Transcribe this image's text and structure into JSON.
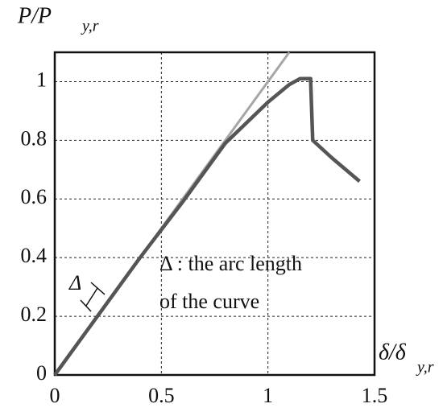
{
  "chart_data": {
    "type": "line",
    "ylabel": {
      "main": "P/P",
      "sub": "y,r"
    },
    "xlabel": {
      "main": "δ/δ",
      "sub": "y,r"
    },
    "annotations": [
      "Δ",
      "Δ : the arc length",
      "of the curve"
    ],
    "xlim": [
      0,
      1.5
    ],
    "xticks": [
      0,
      0.5,
      1,
      1.5
    ],
    "ylim": [
      0,
      1.1
    ],
    "yticks": [
      0,
      0.2,
      0.4,
      0.6,
      0.8,
      1
    ],
    "grid": true,
    "series": [
      {
        "color": "#a6a6a6",
        "x": [
          0,
          1.1
        ],
        "values": [
          0,
          1.1
        ]
      },
      {
        "color": "#555555",
        "x": [
          0,
          0.2,
          0.4,
          0.6,
          0.8,
          0.9,
          1.0,
          1.1,
          1.15,
          1.2,
          1.21,
          1.3,
          1.43
        ],
        "values": [
          0,
          0.2,
          0.4,
          0.59,
          0.79,
          0.86,
          0.93,
          0.99,
          1.01,
          1.01,
          0.8,
          0.74,
          0.66
        ]
      }
    ]
  }
}
